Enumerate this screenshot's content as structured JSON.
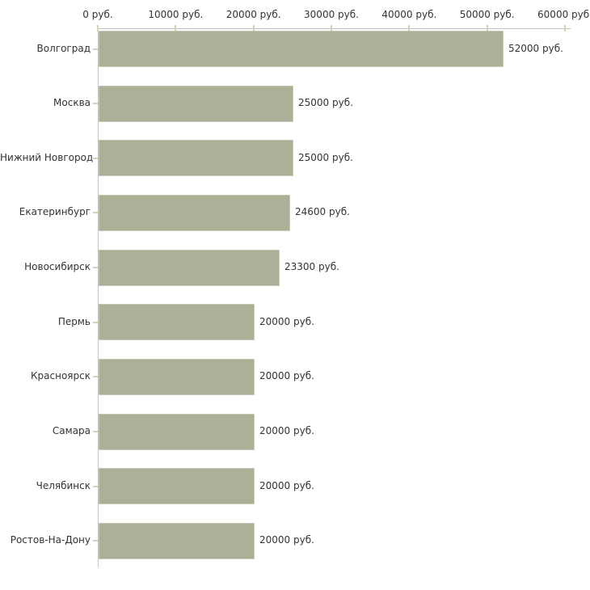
{
  "chart_data": {
    "type": "bar",
    "orientation": "horizontal",
    "categories": [
      "Волгоград",
      "Москва",
      "Нижний Новгород",
      "Екатеринбург",
      "Новосибирск",
      "Пермь",
      "Красноярск",
      "Самара",
      "Челябинск",
      "Ростов-На-Дону"
    ],
    "values": [
      52000,
      25000,
      25000,
      24600,
      23300,
      20000,
      20000,
      20000,
      20000,
      20000
    ],
    "value_labels": [
      "52000 руб.",
      "25000 руб.",
      "25000 руб.",
      "24600 руб.",
      "23300 руб.",
      "20000 руб.",
      "20000 руб.",
      "20000 руб.",
      "20000 руб.",
      "20000 руб."
    ],
    "x_tick_values": [
      0,
      10000,
      20000,
      30000,
      40000,
      50000,
      60000
    ],
    "x_tick_labels": [
      "0 руб.",
      "10000 руб.",
      "20000 руб.",
      "30000 руб.",
      "40000 руб.",
      "50000 руб.",
      "60000 руб."
    ],
    "xlim": [
      0,
      60000
    ],
    "legend": null,
    "grid": false,
    "colors": {
      "bar": "#abb197",
      "axis": "#c3c3c3",
      "tick": "#d5d2b6",
      "text": "#333333",
      "background": "#ffffff"
    }
  }
}
